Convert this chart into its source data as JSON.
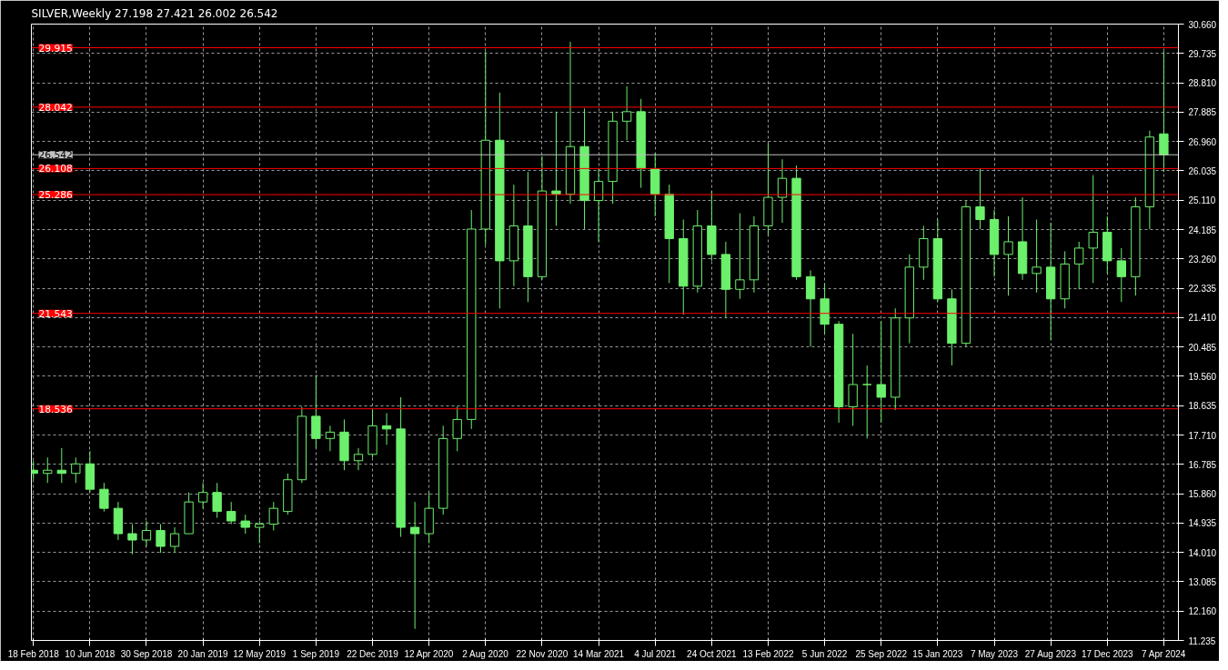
{
  "chart_data": {
    "type": "candlestick",
    "title": "SILVER,Weekly  27.198 27.421 26.002 26.542",
    "color": "#6cf06c",
    "x": [
      "2018-02-18",
      "2018-03-18",
      "2018-04-15",
      "2018-05-13",
      "2018-06-10",
      "2018-07-08",
      "2018-08-05",
      "2018-09-02",
      "2018-09-30",
      "2018-10-28",
      "2018-11-25",
      "2018-12-23",
      "2019-01-20",
      "2019-02-17",
      "2019-03-17",
      "2019-04-14",
      "2019-05-12",
      "2019-06-09",
      "2019-07-07",
      "2019-08-04",
      "2019-09-01",
      "2019-09-29",
      "2019-10-27",
      "2019-11-24",
      "2019-12-22",
      "2020-01-19",
      "2020-02-16",
      "2020-03-15",
      "2020-04-12",
      "2020-05-10",
      "2020-06-07",
      "2020-07-05",
      "2020-08-02",
      "2020-08-30",
      "2020-09-27",
      "2020-10-25",
      "2020-11-22",
      "2020-12-20",
      "2021-01-17",
      "2021-02-14",
      "2021-03-14",
      "2021-04-11",
      "2021-05-09",
      "2021-06-06",
      "2021-07-04",
      "2021-08-01",
      "2021-08-29",
      "2021-09-26",
      "2021-10-24",
      "2021-11-21",
      "2021-12-19",
      "2022-01-16",
      "2022-02-13",
      "2022-03-13",
      "2022-04-10",
      "2022-05-08",
      "2022-06-05",
      "2022-07-03",
      "2022-07-31",
      "2022-08-28",
      "2022-09-25",
      "2022-10-23",
      "2022-11-20",
      "2022-12-18",
      "2023-01-15",
      "2023-02-12",
      "2023-03-12",
      "2023-04-09",
      "2023-05-07",
      "2023-06-04",
      "2023-07-02",
      "2023-07-30",
      "2023-08-27",
      "2023-09-24",
      "2023-10-22",
      "2023-11-19",
      "2023-12-17",
      "2024-01-14",
      "2024-02-11",
      "2024-03-10",
      "2024-04-07"
    ],
    "ohlc": [
      [
        16.6,
        16.9,
        16.3,
        16.5
      ],
      [
        16.5,
        17.0,
        16.2,
        16.6
      ],
      [
        16.6,
        17.3,
        16.2,
        16.5
      ],
      [
        16.5,
        17.0,
        16.2,
        16.8
      ],
      [
        16.8,
        17.2,
        15.9,
        16.0
      ],
      [
        16.0,
        16.2,
        15.3,
        15.4
      ],
      [
        15.4,
        15.6,
        14.4,
        14.6
      ],
      [
        14.6,
        14.9,
        13.95,
        14.4
      ],
      [
        14.4,
        15.0,
        14.2,
        14.7
      ],
      [
        14.7,
        14.9,
        14.0,
        14.2
      ],
      [
        14.2,
        14.8,
        14.0,
        14.6
      ],
      [
        14.6,
        15.9,
        14.6,
        15.6
      ],
      [
        15.6,
        16.2,
        15.4,
        15.9
      ],
      [
        15.9,
        16.2,
        15.1,
        15.3
      ],
      [
        15.3,
        15.6,
        14.9,
        15.0
      ],
      [
        15.0,
        15.2,
        14.6,
        14.8
      ],
      [
        14.8,
        15.0,
        14.3,
        14.9
      ],
      [
        14.9,
        15.6,
        14.7,
        15.4
      ],
      [
        15.3,
        16.5,
        15.2,
        16.3
      ],
      [
        16.3,
        18.6,
        16.2,
        18.3
      ],
      [
        18.3,
        19.6,
        17.3,
        17.6
      ],
      [
        17.6,
        18.0,
        17.2,
        17.8
      ],
      [
        17.8,
        18.2,
        16.6,
        16.9
      ],
      [
        16.9,
        17.3,
        16.6,
        17.1
      ],
      [
        17.1,
        18.5,
        17.0,
        18.0
      ],
      [
        18.0,
        18.4,
        17.4,
        17.9
      ],
      [
        17.9,
        18.9,
        14.5,
        14.8
      ],
      [
        14.8,
        15.6,
        11.6,
        14.6
      ],
      [
        14.6,
        15.9,
        14.3,
        15.4
      ],
      [
        15.4,
        18.0,
        15.2,
        17.6
      ],
      [
        17.6,
        18.6,
        17.2,
        18.2
      ],
      [
        18.2,
        24.8,
        17.9,
        24.2
      ],
      [
        24.2,
        29.8,
        23.7,
        27.0
      ],
      [
        27.0,
        28.5,
        21.7,
        23.2
      ],
      [
        23.2,
        25.6,
        22.4,
        24.3
      ],
      [
        24.3,
        26.0,
        21.9,
        22.7
      ],
      [
        22.7,
        26.5,
        22.6,
        25.4
      ],
      [
        25.4,
        27.9,
        24.3,
        25.3
      ],
      [
        25.3,
        30.1,
        25.0,
        26.8
      ],
      [
        26.8,
        28.0,
        24.2,
        25.1
      ],
      [
        25.1,
        26.1,
        23.8,
        25.7
      ],
      [
        25.7,
        27.9,
        25.0,
        27.6
      ],
      [
        27.6,
        28.7,
        27.0,
        27.9
      ],
      [
        27.9,
        28.3,
        25.5,
        26.1
      ],
      [
        26.1,
        26.6,
        24.6,
        25.3
      ],
      [
        25.3,
        25.6,
        22.5,
        23.9
      ],
      [
        23.9,
        24.5,
        21.5,
        22.4
      ],
      [
        22.4,
        24.8,
        22.2,
        24.3
      ],
      [
        24.3,
        25.4,
        23.2,
        23.4
      ],
      [
        23.4,
        23.8,
        21.4,
        22.3
      ],
      [
        22.3,
        24.7,
        22.0,
        22.6
      ],
      [
        22.6,
        24.6,
        22.2,
        24.3
      ],
      [
        24.3,
        26.9,
        24.0,
        25.2
      ],
      [
        25.2,
        26.4,
        24.4,
        25.8
      ],
      [
        25.8,
        26.2,
        22.6,
        22.7
      ],
      [
        22.7,
        22.9,
        20.5,
        22.0
      ],
      [
        22.0,
        22.5,
        20.9,
        21.2
      ],
      [
        21.2,
        21.3,
        18.1,
        18.6
      ],
      [
        18.6,
        20.9,
        18.0,
        19.3
      ],
      [
        19.3,
        19.9,
        17.6,
        19.3
      ],
      [
        19.3,
        21.3,
        18.1,
        18.9
      ],
      [
        18.9,
        21.7,
        18.5,
        21.4
      ],
      [
        21.4,
        23.4,
        20.6,
        23.0
      ],
      [
        23.0,
        24.3,
        22.6,
        23.9
      ],
      [
        23.9,
        24.5,
        21.9,
        22.0
      ],
      [
        22.0,
        22.3,
        19.9,
        20.6
      ],
      [
        20.6,
        25.1,
        20.5,
        24.9
      ],
      [
        24.9,
        26.1,
        24.2,
        24.5
      ],
      [
        24.5,
        24.8,
        22.7,
        23.4
      ],
      [
        23.4,
        24.6,
        22.1,
        23.8
      ],
      [
        23.8,
        25.2,
        22.6,
        22.8
      ],
      [
        22.8,
        24.5,
        22.2,
        23.0
      ],
      [
        23.0,
        24.4,
        20.7,
        22.0
      ],
      [
        22.0,
        23.5,
        21.7,
        23.1
      ],
      [
        23.1,
        23.8,
        22.3,
        23.6
      ],
      [
        23.6,
        25.9,
        22.5,
        24.1
      ],
      [
        24.1,
        24.6,
        22.8,
        23.2
      ],
      [
        23.2,
        23.6,
        21.9,
        22.7
      ],
      [
        22.7,
        25.2,
        22.1,
        24.9
      ],
      [
        24.9,
        27.3,
        24.2,
        27.1
      ],
      [
        27.2,
        29.8,
        26.0,
        26.54
      ]
    ],
    "xlim": [
      "2018-02-14",
      "2024-05-06"
    ],
    "ylim": [
      11.235,
      30.66
    ],
    "xticks": [
      {
        "value": "2018-02-18",
        "label": "18 Feb 2018"
      },
      {
        "value": "2018-06-10",
        "label": "10 Jun 2018"
      },
      {
        "value": "2018-09-30",
        "label": "30 Sep 2018"
      },
      {
        "value": "2019-01-20",
        "label": "20 Jan 2019"
      },
      {
        "value": "2019-05-12",
        "label": "12 May 2019"
      },
      {
        "value": "2019-09-01",
        "label": "1 Sep 2019"
      },
      {
        "value": "2019-12-22",
        "label": "22 Dec 2019"
      },
      {
        "value": "2020-04-12",
        "label": "12 Apr 2020"
      },
      {
        "value": "2020-08-02",
        "label": "2 Aug 2020"
      },
      {
        "value": "2020-11-22",
        "label": "22 Nov 2020"
      },
      {
        "value": "2021-03-14",
        "label": "14 Mar 2021"
      },
      {
        "value": "2021-07-04",
        "label": "4 Jul 2021"
      },
      {
        "value": "2021-10-24",
        "label": "24 Oct 2021"
      },
      {
        "value": "2022-02-13",
        "label": "13 Feb 2022"
      },
      {
        "value": "2022-06-05",
        "label": "5 Jun 2022"
      },
      {
        "value": "2022-09-25",
        "label": "25 Sep 2022"
      },
      {
        "value": "2023-01-15",
        "label": "15 Jan 2023"
      },
      {
        "value": "2023-05-07",
        "label": "7 May 2023"
      },
      {
        "value": "2023-08-27",
        "label": "27 Aug 2023"
      },
      {
        "value": "2023-12-17",
        "label": "17 Dec 2023"
      },
      {
        "value": "2024-04-07",
        "label": "7 Apr 2024"
      }
    ],
    "yticks": [
      {
        "value": 11.235,
        "label": "11.235"
      },
      {
        "value": 12.16,
        "label": "12.160"
      },
      {
        "value": 13.085,
        "label": "13.085"
      },
      {
        "value": 14.01,
        "label": "14.010"
      },
      {
        "value": 14.935,
        "label": "14.935"
      },
      {
        "value": 15.86,
        "label": "15.860"
      },
      {
        "value": 16.785,
        "label": "16.785"
      },
      {
        "value": 17.71,
        "label": "17.710"
      },
      {
        "value": 18.635,
        "label": "18.635"
      },
      {
        "value": 19.56,
        "label": "19.560"
      },
      {
        "value": 20.485,
        "label": "20.485"
      },
      {
        "value": 21.41,
        "label": "21.410"
      },
      {
        "value": 22.335,
        "label": "22.335"
      },
      {
        "value": 23.26,
        "label": "23.260"
      },
      {
        "value": 24.185,
        "label": "24.185"
      },
      {
        "value": 25.11,
        "label": "25.110"
      },
      {
        "value": 26.035,
        "label": "26.035"
      },
      {
        "value": 26.96,
        "label": "26.960"
      },
      {
        "value": 27.885,
        "label": "27.885"
      },
      {
        "value": 28.81,
        "label": "28.810"
      },
      {
        "value": 29.735,
        "label": "29.735"
      },
      {
        "value": 30.66,
        "label": "30.660"
      }
    ],
    "grid": true,
    "ref_lines": [
      {
        "axis": "y",
        "value": 29.915,
        "label": "29.915",
        "color": "#ff0000"
      },
      {
        "axis": "y",
        "value": 28.042,
        "label": "28.042",
        "color": "#ff0000"
      },
      {
        "axis": "y",
        "value": 26.542,
        "label": "26.542",
        "color": "#c0c0c0"
      },
      {
        "axis": "y",
        "value": 26.108,
        "label": "26.108",
        "color": "#ff0000"
      },
      {
        "axis": "y",
        "value": 25.286,
        "label": "25.286",
        "color": "#ff0000"
      },
      {
        "axis": "y",
        "value": 21.543,
        "label": "21.543",
        "color": "#ff0000"
      },
      {
        "axis": "y",
        "value": 18.536,
        "label": "18.536",
        "color": "#ff0000"
      }
    ]
  }
}
